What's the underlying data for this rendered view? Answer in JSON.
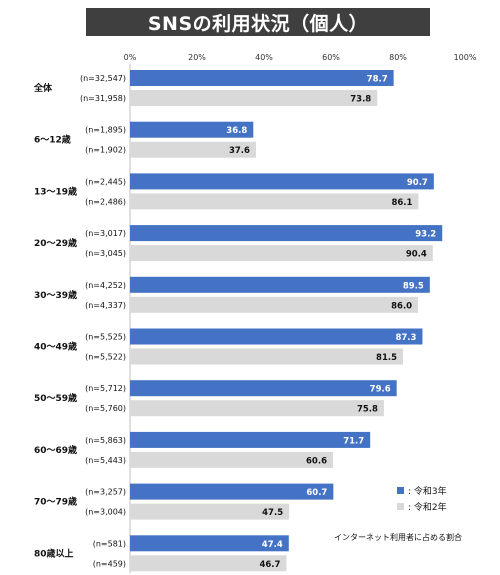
{
  "chart_data": {
    "type": "bar",
    "orientation": "horizontal",
    "title": "SNSの利用状況（個人）",
    "xlim": [
      0,
      100
    ],
    "xticks": [
      "0%",
      "20%",
      "40%",
      "60%",
      "80%",
      "100%"
    ],
    "grid": false,
    "legend_position": "bottom-right",
    "categories": [
      "全体",
      "6～12歳",
      "13～19歳",
      "20～29歳",
      "30～39歳",
      "40～49歳",
      "50～59歳",
      "60～69歳",
      "70～79歳",
      "80歳以上"
    ],
    "series": [
      {
        "name": "令和3年",
        "color": "#4472c4",
        "values": [
          78.7,
          36.8,
          90.7,
          93.2,
          89.5,
          87.3,
          79.6,
          71.7,
          60.7,
          47.4
        ],
        "n": [
          "(n=32,547)",
          "(n=1,895)",
          "(n=2,445)",
          "(n=3,017)",
          "(n=4,252)",
          "(n=5,525)",
          "(n=5,712)",
          "(n=5,863)",
          "(n=3,257)",
          "(n=581)"
        ]
      },
      {
        "name": "令和2年",
        "color": "#d9d9d9",
        "values": [
          73.8,
          37.6,
          86.1,
          90.4,
          86.0,
          81.5,
          75.8,
          60.6,
          47.5,
          46.7
        ],
        "n": [
          "(n=31,958)",
          "(n=1,902)",
          "(n=2,486)",
          "(n=3,045)",
          "(n=4,337)",
          "(n=5,522)",
          "(n=5,760)",
          "(n=5,443)",
          "(n=3,004)",
          "(n=459)"
        ]
      }
    ],
    "legend": [
      ": 令和3年",
      ": 令和2年"
    ],
    "note": "インターネット利用者に占める割合"
  }
}
